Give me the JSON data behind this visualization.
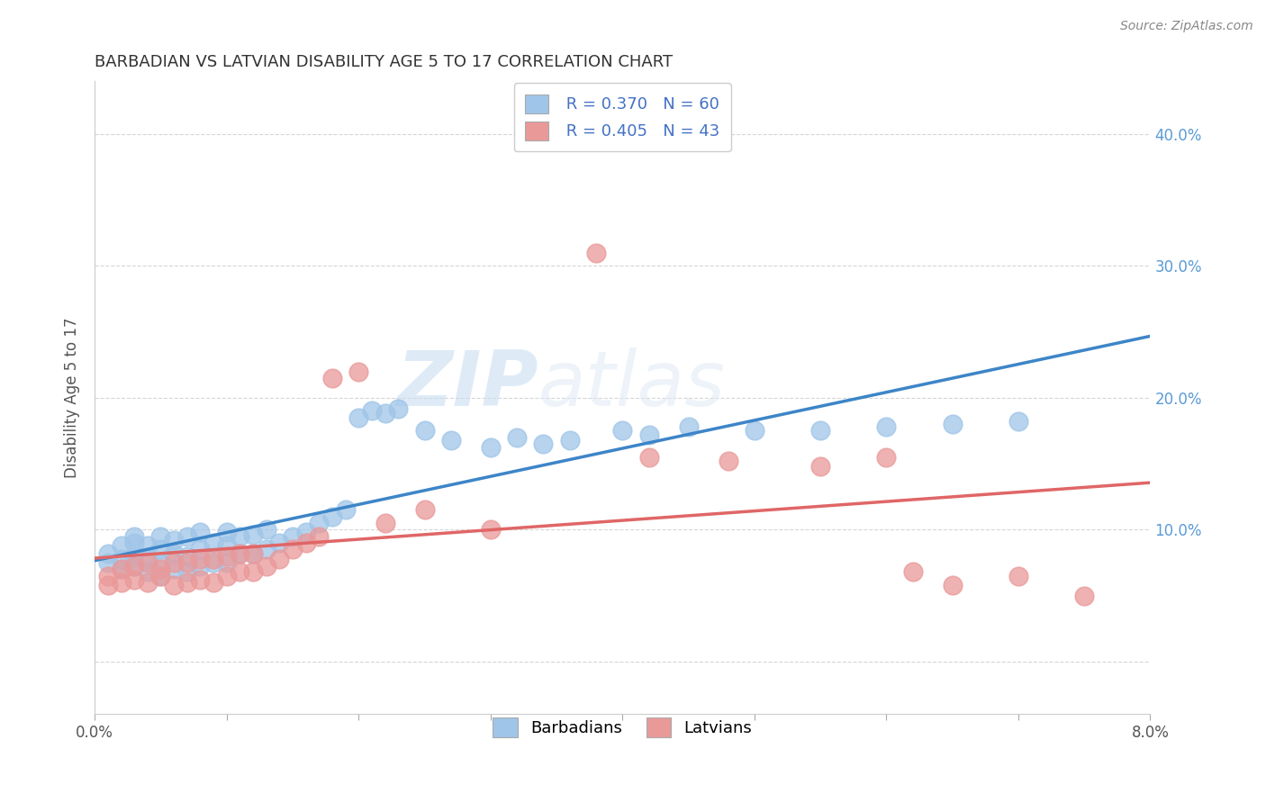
{
  "title": "BARBADIAN VS LATVIAN DISABILITY AGE 5 TO 17 CORRELATION CHART",
  "source": "Source: ZipAtlas.com",
  "xlabel": "",
  "ylabel": "Disability Age 5 to 17",
  "xlim": [
    0.0,
    0.08
  ],
  "ylim": [
    -0.04,
    0.44
  ],
  "xticks": [
    0.0,
    0.01,
    0.02,
    0.03,
    0.04,
    0.05,
    0.06,
    0.07,
    0.08
  ],
  "xticklabels": [
    "0.0%",
    "",
    "",
    "",
    "",
    "",
    "",
    "",
    "8.0%"
  ],
  "yticks": [
    0.0,
    0.1,
    0.2,
    0.3,
    0.4
  ],
  "yticklabels": [
    "",
    "10.0%",
    "20.0%",
    "30.0%",
    "40.0%"
  ],
  "legend_r1": "R = 0.370",
  "legend_n1": "N = 60",
  "legend_r2": "R = 0.405",
  "legend_n2": "N = 43",
  "blue_color": "#9fc5e8",
  "pink_color": "#ea9999",
  "blue_line_color": "#3d85c8",
  "pink_line_color": "#e06666",
  "watermark_zip": "ZIP",
  "watermark_atlas": "atlas",
  "barbadians_x": [
    0.001,
    0.001,
    0.002,
    0.002,
    0.002,
    0.003,
    0.003,
    0.003,
    0.003,
    0.004,
    0.004,
    0.004,
    0.005,
    0.005,
    0.005,
    0.005,
    0.006,
    0.006,
    0.006,
    0.007,
    0.007,
    0.007,
    0.008,
    0.008,
    0.008,
    0.009,
    0.009,
    0.01,
    0.01,
    0.01,
    0.011,
    0.011,
    0.012,
    0.012,
    0.013,
    0.013,
    0.014,
    0.015,
    0.016,
    0.017,
    0.018,
    0.019,
    0.02,
    0.021,
    0.022,
    0.023,
    0.025,
    0.027,
    0.03,
    0.032,
    0.034,
    0.036,
    0.04,
    0.042,
    0.045,
    0.05,
    0.055,
    0.06,
    0.065,
    0.07
  ],
  "barbadians_y": [
    0.075,
    0.082,
    0.07,
    0.078,
    0.088,
    0.072,
    0.08,
    0.09,
    0.095,
    0.068,
    0.078,
    0.088,
    0.065,
    0.075,
    0.085,
    0.095,
    0.07,
    0.082,
    0.092,
    0.068,
    0.08,
    0.095,
    0.072,
    0.085,
    0.098,
    0.075,
    0.09,
    0.075,
    0.088,
    0.098,
    0.082,
    0.095,
    0.082,
    0.096,
    0.085,
    0.1,
    0.09,
    0.095,
    0.098,
    0.105,
    0.11,
    0.115,
    0.185,
    0.19,
    0.188,
    0.192,
    0.175,
    0.168,
    0.162,
    0.17,
    0.165,
    0.168,
    0.175,
    0.172,
    0.178,
    0.175,
    0.175,
    0.178,
    0.18,
    0.182
  ],
  "latvians_x": [
    0.001,
    0.001,
    0.002,
    0.002,
    0.003,
    0.003,
    0.004,
    0.004,
    0.005,
    0.005,
    0.006,
    0.006,
    0.007,
    0.007,
    0.008,
    0.008,
    0.009,
    0.009,
    0.01,
    0.01,
    0.011,
    0.011,
    0.012,
    0.012,
    0.013,
    0.014,
    0.015,
    0.016,
    0.017,
    0.018,
    0.02,
    0.022,
    0.025,
    0.03,
    0.038,
    0.042,
    0.048,
    0.055,
    0.06,
    0.062,
    0.065,
    0.07,
    0.075
  ],
  "latvians_y": [
    0.058,
    0.065,
    0.06,
    0.07,
    0.062,
    0.072,
    0.06,
    0.075,
    0.065,
    0.07,
    0.058,
    0.075,
    0.06,
    0.075,
    0.062,
    0.078,
    0.06,
    0.078,
    0.065,
    0.08,
    0.068,
    0.082,
    0.068,
    0.082,
    0.072,
    0.078,
    0.085,
    0.09,
    0.095,
    0.215,
    0.22,
    0.105,
    0.115,
    0.1,
    0.31,
    0.155,
    0.152,
    0.148,
    0.155,
    0.068,
    0.058,
    0.065,
    0.05
  ]
}
